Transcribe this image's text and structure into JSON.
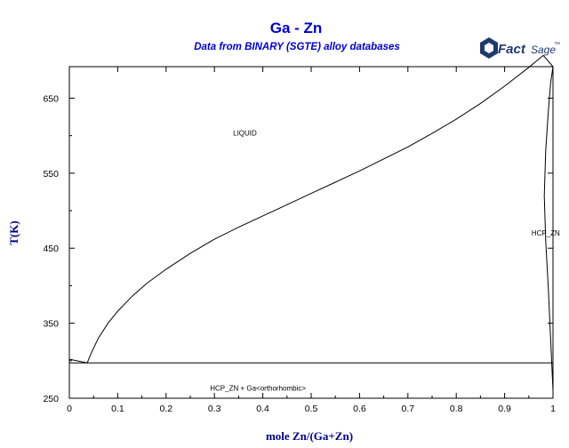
{
  "header": {
    "title": "Ga - Zn",
    "subtitle": "Data from BINARY (SGTE) alloy databases",
    "logo": {
      "main": "Fact",
      "secondary": "Sage",
      "mark": "™",
      "color": "#1f3a6e"
    }
  },
  "colors": {
    "title": "#0000cc",
    "axis_label": "#00008b",
    "lines": "#000000"
  },
  "chart_data": {
    "type": "line",
    "title": "Ga - Zn",
    "subtitle": "Data from BINARY (SGTE) alloy databases",
    "xlabel": "mole Zn/(Ga+Zn)",
    "ylabel": "T(K)",
    "xlim": [
      0,
      1
    ],
    "ylim": [
      250,
      692
    ],
    "x_ticks": [
      0,
      0.1,
      0.2,
      0.3,
      0.4,
      0.5,
      0.6,
      0.7,
      0.8,
      0.9,
      1
    ],
    "x_tick_labels": [
      "0",
      "0.1",
      "0.2",
      "0.3",
      "0.4",
      "0.5",
      "0.6",
      "0.7",
      "0.8",
      "0.9",
      "1"
    ],
    "y_ticks": [
      250,
      350,
      450,
      550,
      650
    ],
    "y_tick_labels": [
      "250",
      "350",
      "450",
      "550",
      "650"
    ],
    "grid": false,
    "series": [
      {
        "x": [
          0.037,
          0.045,
          0.06,
          0.08,
          0.1,
          0.13,
          0.16,
          0.2,
          0.25,
          0.3,
          0.35,
          0.4,
          0.45,
          0.5,
          0.55,
          0.6,
          0.65,
          0.7,
          0.75,
          0.8,
          0.85,
          0.9,
          0.95,
          0.98,
          1.0
        ],
        "y": [
          297,
          310,
          330,
          350,
          366,
          386,
          403,
          422,
          443,
          462,
          478,
          493,
          508,
          523,
          538,
          553,
          569,
          585,
          603,
          622,
          643,
          666,
          691,
          707,
          692
        ]
      },
      {
        "x": [
          0.0,
          0.037
        ],
        "y": [
          302,
          297
        ]
      },
      {
        "x": [
          0.0,
          1.0
        ],
        "y": [
          297,
          297
        ]
      },
      {
        "x": [
          1.0,
          0.995,
          0.99,
          0.985,
          0.982,
          0.985,
          0.99,
          0.995,
          1.0
        ],
        "y": [
          692,
          670,
          630,
          580,
          520,
          460,
          400,
          330,
          260
        ]
      },
      {
        "x": [
          1.0,
          1.0
        ],
        "y": [
          250,
          692
        ]
      }
    ],
    "annotations": [
      {
        "text": "LIQUID",
        "x": 0.363,
        "y": 600
      },
      {
        "text": "HCP_ZN",
        "x": 0.985,
        "y": 467
      },
      {
        "text": "HCP_ZN + Ga<orthorhombic>",
        "x": 0.39,
        "y": 260
      }
    ]
  }
}
